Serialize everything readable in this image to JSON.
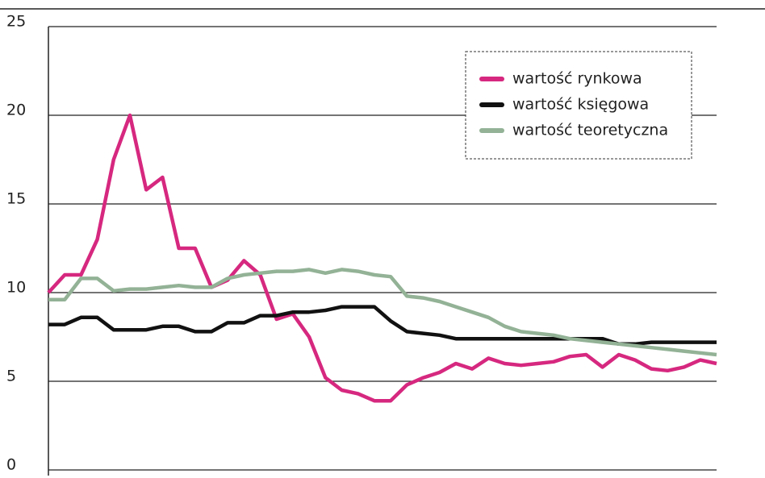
{
  "chart_data": {
    "type": "line",
    "categories": [
      null,
      null,
      null,
      null,
      null,
      null,
      null,
      null,
      null,
      null,
      null,
      null,
      null,
      null,
      null,
      null,
      null,
      null,
      null,
      null,
      null,
      null,
      null,
      null,
      null,
      null,
      null,
      null,
      null,
      null,
      null,
      null,
      null,
      null,
      null,
      null,
      null,
      null,
      null,
      null,
      null,
      null
    ],
    "series": [
      {
        "name": "wartość rynkowa",
        "color": "#d6287f",
        "values": [
          10,
          11,
          11,
          13,
          17.5,
          20,
          15.8,
          16.5,
          12.5,
          12.5,
          10.3,
          10.7,
          11.8,
          11,
          8.5,
          8.8,
          7.5,
          5.2,
          4.5,
          4.3,
          3.9,
          3.9,
          4.8,
          5.2,
          5.5,
          6,
          5.7,
          6.3,
          6,
          5.9,
          6,
          6.1,
          6.4,
          6.5,
          5.8,
          6.5,
          6.2,
          5.7,
          5.6,
          5.8,
          6.2,
          6
        ]
      },
      {
        "name": "wartość księgowa",
        "color": "#111111",
        "values": [
          8.2,
          8.2,
          8.6,
          8.6,
          7.9,
          7.9,
          7.9,
          8.1,
          8.1,
          7.8,
          7.8,
          8.3,
          8.3,
          8.7,
          8.7,
          8.9,
          8.9,
          9.0,
          9.2,
          9.2,
          9.2,
          8.4,
          7.8,
          7.7,
          7.6,
          7.4,
          7.4,
          7.4,
          7.4,
          7.4,
          7.4,
          7.4,
          7.4,
          7.4,
          7.4,
          7.1,
          7.1,
          7.2,
          7.2,
          7.2,
          7.2,
          7.2
        ]
      },
      {
        "name": "wartość teoretyczna",
        "color": "#93b296",
        "values": [
          9.6,
          9.6,
          10.8,
          10.8,
          10.1,
          10.2,
          10.2,
          10.3,
          10.4,
          10.3,
          10.3,
          10.8,
          11,
          11.1,
          11.2,
          11.2,
          11.3,
          11.1,
          11.3,
          11.2,
          11,
          10.9,
          9.8,
          9.7,
          9.5,
          9.2,
          8.9,
          8.6,
          8.1,
          7.8,
          7.7,
          7.6,
          7.4,
          7.3,
          7.2,
          7.1,
          7.0,
          6.9,
          6.8,
          6.7,
          6.6,
          6.5
        ]
      }
    ],
    "ylim": [
      0,
      25
    ],
    "yticks": [
      0,
      5,
      10,
      15,
      20,
      25
    ],
    "grid": true,
    "legend": "upper right"
  }
}
